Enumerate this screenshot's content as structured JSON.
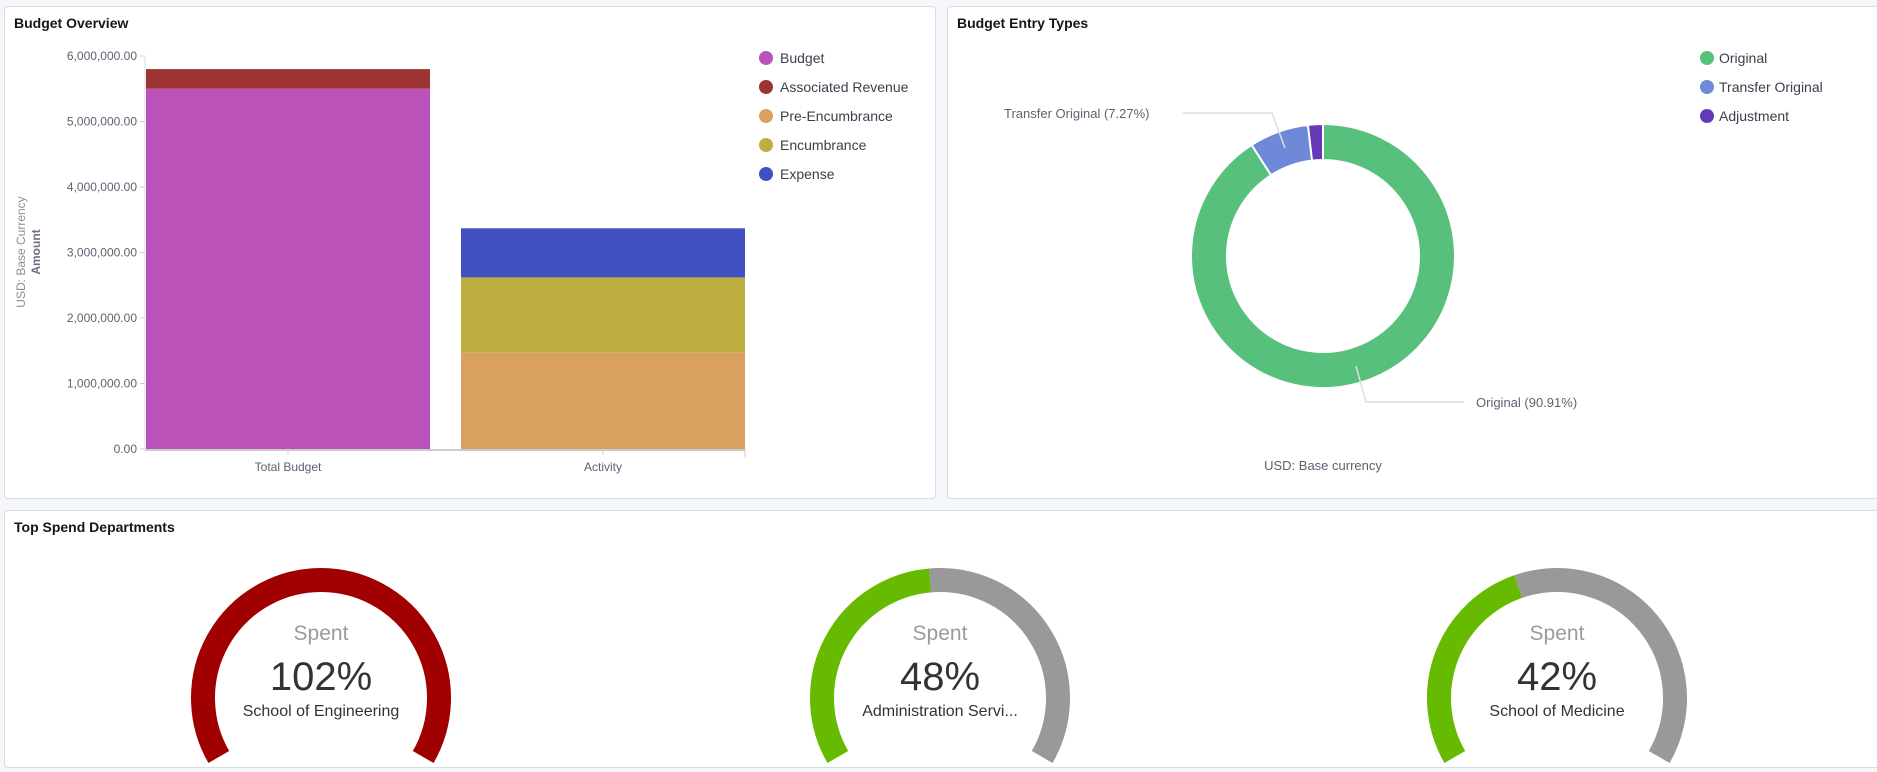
{
  "panels": {
    "budget_overview": {
      "title": "Budget Overview"
    },
    "entry_types": {
      "title": "Budget Entry Types",
      "footer": "USD: Base currency"
    },
    "top_spend": {
      "title": "Top Spend Departments"
    }
  },
  "chart_data": [
    {
      "type": "bar",
      "stacked": true,
      "ylabel": "Amount",
      "ylabel_sub": "USD: Base Currency",
      "ylim": [
        0,
        6000000
      ],
      "yticks": [
        "0.00",
        "1,000,000.00",
        "2,000,000.00",
        "3,000,000.00",
        "4,000,000.00",
        "5,000,000.00",
        "6,000,000.00"
      ],
      "categories": [
        "Total Budget",
        "Activity"
      ],
      "legend_position": "top-right",
      "series": [
        {
          "name": "Budget",
          "color": "#bb52b9",
          "values": [
            5500000,
            0
          ]
        },
        {
          "name": "Associated Revenue",
          "color": "#9e3333",
          "values": [
            300000,
            0
          ]
        },
        {
          "name": "Pre-Encumbrance",
          "color": "#d9a05f",
          "values": [
            0,
            1470000
          ]
        },
        {
          "name": "Encumbrance",
          "color": "#bead3f",
          "values": [
            0,
            1150000
          ]
        },
        {
          "name": "Expense",
          "color": "#4050c1",
          "values": [
            0,
            750000
          ]
        }
      ]
    },
    {
      "type": "pie",
      "donut": true,
      "legend_position": "top-right",
      "slices": [
        {
          "name": "Original",
          "value": 90.91,
          "color": "#57c07c",
          "label": "Original (90.91%)"
        },
        {
          "name": "Transfer Original",
          "value": 7.27,
          "color": "#6f89d9",
          "label": "Transfer Original (7.27%)"
        },
        {
          "name": "Adjustment",
          "value": 1.82,
          "color": "#6539b8",
          "label": ""
        }
      ]
    }
  ],
  "gauges": [
    {
      "caption": "Spent",
      "value_label": "102%",
      "value": 102,
      "name": "School of Engineering",
      "color": "#a00000"
    },
    {
      "caption": "Spent",
      "value_label": "48%",
      "value": 48,
      "name": "Administration Servi...",
      "color": "#66bb00"
    },
    {
      "caption": "Spent",
      "value_label": "42%",
      "value": 42,
      "name": "School of Medicine",
      "color": "#66bb00"
    }
  ],
  "gauge_track_color": "#999999"
}
